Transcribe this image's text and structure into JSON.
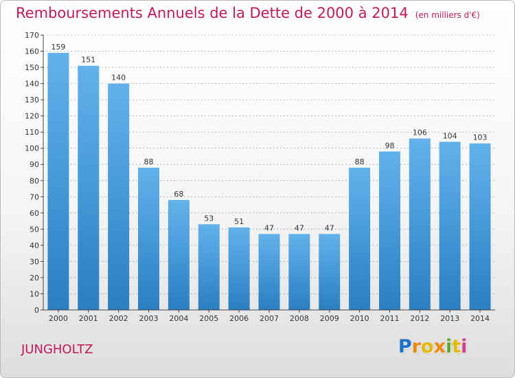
{
  "header": {
    "title": "Remboursements Annuels de la Dette de 2000 à 2014",
    "unit": "(en milliers d'€)"
  },
  "footer": {
    "commune": "JUNGHOLTZ",
    "logo": [
      "P",
      "r",
      "o",
      "x",
      "i",
      "t",
      "i"
    ]
  },
  "colors": {
    "title": "#c2185b",
    "bar_top": "#62b1ec",
    "bar_bottom": "#2a7fc1",
    "grid": "#333333"
  },
  "chart_data": {
    "type": "bar",
    "title": "Remboursements Annuels de la Dette de 2000 à 2014",
    "categories": [
      "2000",
      "2001",
      "2002",
      "2003",
      "2004",
      "2005",
      "2006",
      "2007",
      "2008",
      "2009",
      "2010",
      "2011",
      "2012",
      "2013",
      "2014"
    ],
    "values": [
      159,
      151,
      140,
      88,
      68,
      53,
      51,
      47,
      47,
      47,
      88,
      98,
      106,
      104,
      103
    ],
    "ylim": [
      0,
      170
    ],
    "yticks": [
      0,
      10,
      20,
      30,
      40,
      50,
      60,
      70,
      80,
      90,
      100,
      110,
      120,
      130,
      140,
      150,
      160,
      170
    ],
    "grid": "dashed-horizontal",
    "legend": "none",
    "data_labels": true
  }
}
